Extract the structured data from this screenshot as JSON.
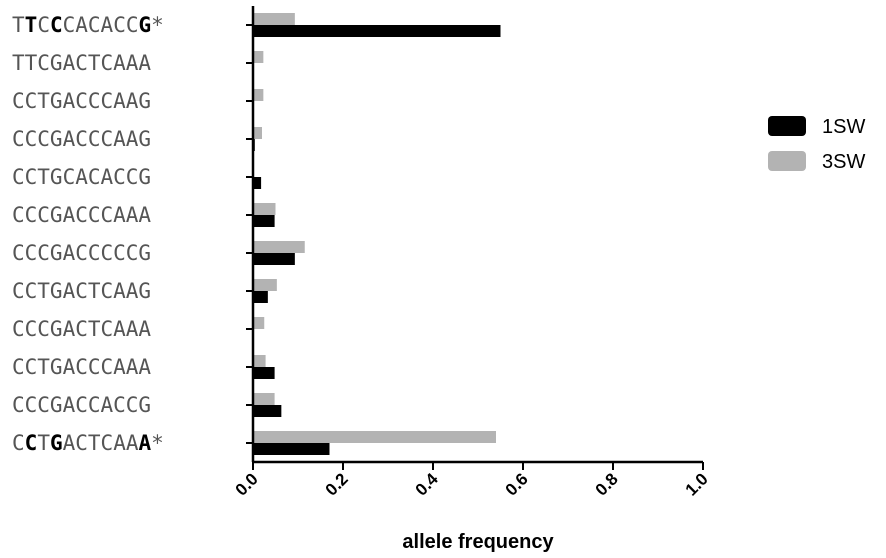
{
  "chart_data": {
    "type": "bar",
    "orientation": "horizontal",
    "categories": [
      [
        {
          "t": "T",
          "b": false
        },
        {
          "t": "T",
          "b": true
        },
        {
          "t": "C",
          "b": false
        },
        {
          "t": "C",
          "b": true
        },
        {
          "t": "CACACC",
          "b": false
        },
        {
          "t": "G",
          "b": true
        },
        {
          "t": "*",
          "b": false
        }
      ],
      [
        {
          "t": "TTCGACTCAAA",
          "b": false
        }
      ],
      [
        {
          "t": "CCTGACCCAAG",
          "b": false
        }
      ],
      [
        {
          "t": "CCCGACCCAAG",
          "b": false
        }
      ],
      [
        {
          "t": "CCTGCACACCG",
          "b": false
        }
      ],
      [
        {
          "t": "CCCGACCCAAA",
          "b": false
        }
      ],
      [
        {
          "t": "CCCGACCCCCG",
          "b": false
        }
      ],
      [
        {
          "t": "CCTGACTCAAG",
          "b": false
        }
      ],
      [
        {
          "t": "CCCGACTCAAA",
          "b": false
        }
      ],
      [
        {
          "t": "CCTGACCCAAA",
          "b": false
        }
      ],
      [
        {
          "t": "CCCGACCACCG",
          "b": false
        }
      ],
      [
        {
          "t": "C",
          "b": false
        },
        {
          "t": "C",
          "b": true
        },
        {
          "t": "T",
          "b": false
        },
        {
          "t": "G",
          "b": true
        },
        {
          "t": "ACTCAA",
          "b": false
        },
        {
          "t": "A",
          "b": true
        },
        {
          "t": "*",
          "b": false
        }
      ]
    ],
    "series": [
      {
        "name": "1SW",
        "color": "#000000",
        "values": [
          0.55,
          0.002,
          0.002,
          0.004,
          0.018,
          0.048,
          0.093,
          0.033,
          0.002,
          0.048,
          0.063,
          0.17
        ]
      },
      {
        "name": "3SW",
        "color": "#b3b3b3",
        "values": [
          0.093,
          0.023,
          0.023,
          0.02,
          0.0,
          0.05,
          0.115,
          0.053,
          0.025,
          0.028,
          0.048,
          0.54
        ]
      }
    ],
    "xlabel": "allele frequency",
    "xlim": [
      0.0,
      1.0
    ],
    "xticks": [
      "0.0",
      "0.2",
      "0.4",
      "0.6",
      "0.8",
      "1.0"
    ],
    "legend_position": "right"
  }
}
